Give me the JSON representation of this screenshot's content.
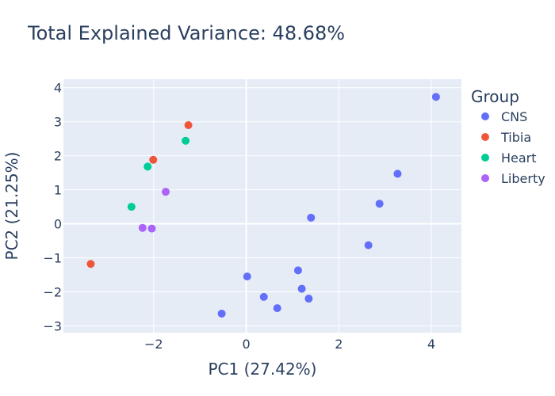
{
  "chart_data": {
    "type": "scatter",
    "title": "Total Explained Variance: 48.68%",
    "xlabel": "PC1 (27.42%)",
    "ylabel": "PC2 (21.25%)",
    "xlim": [
      -3.95,
      4.65
    ],
    "ylim": [
      -3.2,
      4.25
    ],
    "xticks": [
      -2,
      0,
      2,
      4
    ],
    "xtick_labels": [
      "−2",
      "0",
      "2",
      "4"
    ],
    "yticks": [
      -3,
      -2,
      -1,
      0,
      1,
      2,
      3,
      4
    ],
    "ytick_labels": [
      "−3",
      "−2",
      "−1",
      "0",
      "1",
      "2",
      "3",
      "4"
    ],
    "grid": true,
    "legend": {
      "title": "Group",
      "placement": "right"
    },
    "series": [
      {
        "name": "CNS",
        "color": "#636efa",
        "points": [
          {
            "x": 4.1,
            "y": 3.73
          },
          {
            "x": 3.27,
            "y": 1.47
          },
          {
            "x": 2.88,
            "y": 0.59
          },
          {
            "x": 1.4,
            "y": 0.18
          },
          {
            "x": 2.64,
            "y": -0.63
          },
          {
            "x": 1.12,
            "y": -1.37
          },
          {
            "x": 0.02,
            "y": -1.55
          },
          {
            "x": 1.2,
            "y": -1.91
          },
          {
            "x": 0.38,
            "y": -2.15
          },
          {
            "x": 1.35,
            "y": -2.2
          },
          {
            "x": 0.67,
            "y": -2.48
          },
          {
            "x": -0.53,
            "y": -2.64
          }
        ]
      },
      {
        "name": "Tibia",
        "color": "#ef553b",
        "points": [
          {
            "x": -1.25,
            "y": 2.9
          },
          {
            "x": -2.01,
            "y": 1.88
          },
          {
            "x": -3.36,
            "y": -1.18
          }
        ]
      },
      {
        "name": "Heart",
        "color": "#00cc96",
        "points": [
          {
            "x": -1.31,
            "y": 2.44
          },
          {
            "x": -2.13,
            "y": 1.68
          },
          {
            "x": -2.48,
            "y": 0.5
          }
        ]
      },
      {
        "name": "Liberty",
        "color": "#ab63fa",
        "points": [
          {
            "x": -1.74,
            "y": 0.94
          },
          {
            "x": -2.24,
            "y": -0.12
          },
          {
            "x": -2.04,
            "y": -0.14
          }
        ]
      }
    ]
  }
}
